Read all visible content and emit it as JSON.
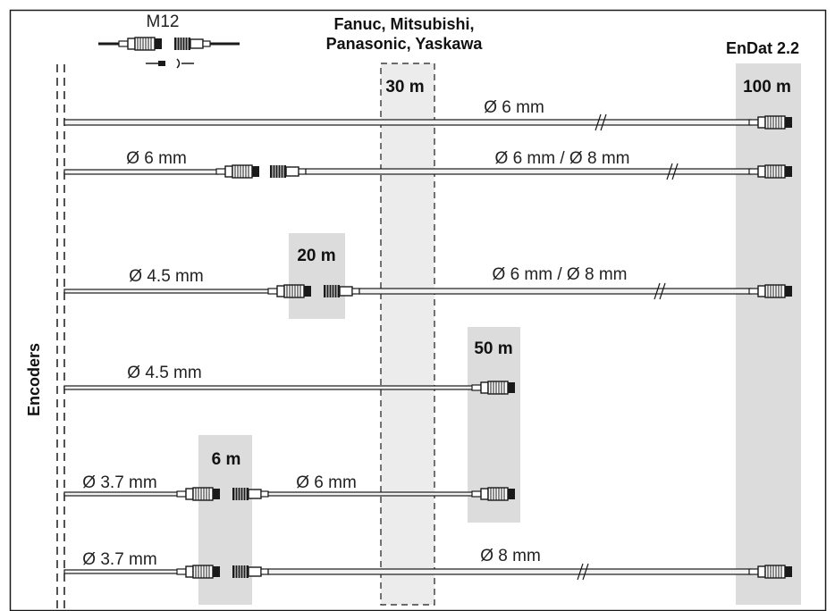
{
  "header": {
    "m12": "M12",
    "fanuc_line1": "Fanuc, Mitsubishi,",
    "fanuc_line2": "Panasonic, Yaskawa",
    "endat": "EnDat 2.2"
  },
  "side_label": "Encoders",
  "zones": {
    "max_30": "30 m",
    "max_100": "100 m",
    "max_20": "20 m",
    "max_50": "50 m",
    "max_6": "6 m"
  },
  "rows": [
    {
      "labels": [
        "Ø 6 mm"
      ]
    },
    {
      "labels": [
        "Ø 6 mm",
        "Ø 6 mm / Ø 8 mm"
      ]
    },
    {
      "labels": [
        "Ø 4.5 mm",
        "Ø 6 mm / Ø 8 mm"
      ]
    },
    {
      "labels": [
        "Ø 4.5 mm"
      ]
    },
    {
      "labels": [
        "Ø 3.7 mm",
        "Ø 6 mm"
      ]
    },
    {
      "labels": [
        "Ø 3.7 mm",
        "Ø 8 mm"
      ]
    }
  ],
  "colors": {
    "zone_fill": "#dcdcdc",
    "cable_fill": "#f2f2f2",
    "line": "#1a1a1a"
  }
}
